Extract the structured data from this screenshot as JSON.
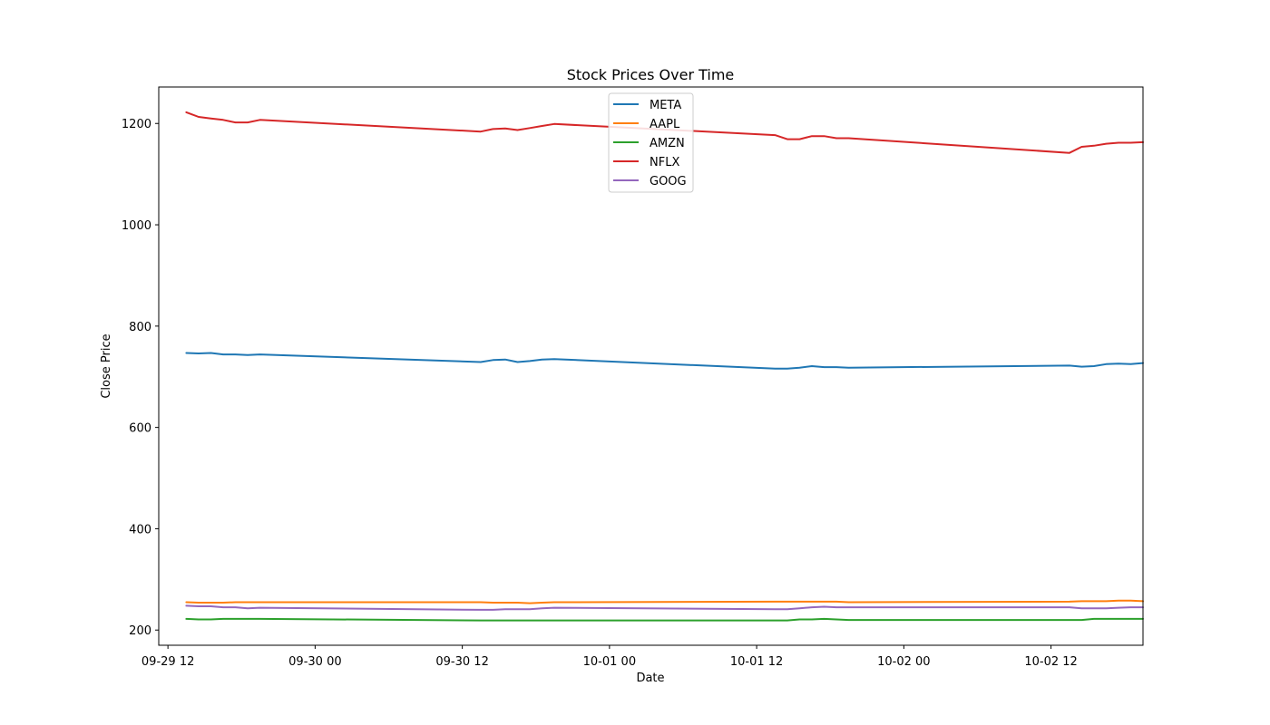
{
  "chart_data": {
    "type": "line",
    "title": "Stock Prices Over Time",
    "xlabel": "Date",
    "ylabel": "Close Price",
    "x_tick_labels": [
      {
        "label": "09-29 12",
        "date": "2025-09-29T12:00"
      },
      {
        "label": "09-30 00",
        "date": "2025-09-30T00:00"
      },
      {
        "label": "09-30 12",
        "date": "2025-09-30T12:00"
      },
      {
        "label": "10-01 00",
        "date": "2025-10-01T00:00"
      },
      {
        "label": "10-01 12",
        "date": "2025-10-01T12:00"
      },
      {
        "label": "10-02 00",
        "date": "2025-10-02T00:00"
      },
      {
        "label": "10-02 12",
        "date": "2025-10-02T12:00"
      }
    ],
    "y_ticks": [
      200,
      400,
      600,
      800,
      1000,
      1200
    ],
    "xlim": [
      "2025-09-29T11:15",
      "2025-10-02T19:30"
    ],
    "ylim": [
      170,
      1272
    ],
    "grid": false,
    "legend_position": "upper center",
    "series": [
      {
        "name": "META",
        "color": "#1f77b4",
        "points": [
          [
            "2025-09-29T13:30",
            747
          ],
          [
            "2025-09-29T14:30",
            746
          ],
          [
            "2025-09-29T15:30",
            747
          ],
          [
            "2025-09-29T16:30",
            744
          ],
          [
            "2025-09-29T17:30",
            744
          ],
          [
            "2025-09-29T18:30",
            743
          ],
          [
            "2025-09-29T19:30",
            744
          ],
          [
            "2025-09-30T13:30",
            729
          ],
          [
            "2025-09-30T14:30",
            733
          ],
          [
            "2025-09-30T15:30",
            734
          ],
          [
            "2025-09-30T16:30",
            729
          ],
          [
            "2025-09-30T17:30",
            731
          ],
          [
            "2025-09-30T18:30",
            734
          ],
          [
            "2025-09-30T19:30",
            735
          ],
          [
            "2025-10-01T13:30",
            716
          ],
          [
            "2025-10-01T14:30",
            716
          ],
          [
            "2025-10-01T15:30",
            718
          ],
          [
            "2025-10-01T16:30",
            721
          ],
          [
            "2025-10-01T17:30",
            719
          ],
          [
            "2025-10-01T18:30",
            719
          ],
          [
            "2025-10-01T19:30",
            718
          ],
          [
            "2025-10-02T13:30",
            722
          ],
          [
            "2025-10-02T14:30",
            720
          ],
          [
            "2025-10-02T15:30",
            721
          ],
          [
            "2025-10-02T16:30",
            725
          ],
          [
            "2025-10-02T17:30",
            726
          ],
          [
            "2025-10-02T18:30",
            725
          ],
          [
            "2025-10-02T19:30",
            727
          ]
        ]
      },
      {
        "name": "AAPL",
        "color": "#ff7f0e",
        "points": [
          [
            "2025-09-29T13:30",
            255
          ],
          [
            "2025-09-29T14:30",
            254
          ],
          [
            "2025-09-29T15:30",
            254
          ],
          [
            "2025-09-29T16:30",
            254
          ],
          [
            "2025-09-29T17:30",
            255
          ],
          [
            "2025-09-29T18:30",
            255
          ],
          [
            "2025-09-29T19:30",
            255
          ],
          [
            "2025-09-30T13:30",
            255
          ],
          [
            "2025-09-30T14:30",
            254
          ],
          [
            "2025-09-30T15:30",
            254
          ],
          [
            "2025-09-30T16:30",
            254
          ],
          [
            "2025-09-30T17:30",
            253
          ],
          [
            "2025-09-30T18:30",
            254
          ],
          [
            "2025-09-30T19:30",
            255
          ],
          [
            "2025-10-01T13:30",
            256
          ],
          [
            "2025-10-01T14:30",
            256
          ],
          [
            "2025-10-01T15:30",
            256
          ],
          [
            "2025-10-01T16:30",
            256
          ],
          [
            "2025-10-01T17:30",
            256
          ],
          [
            "2025-10-01T18:30",
            256
          ],
          [
            "2025-10-01T19:30",
            255
          ],
          [
            "2025-10-02T13:30",
            256
          ],
          [
            "2025-10-02T14:30",
            257
          ],
          [
            "2025-10-02T15:30",
            257
          ],
          [
            "2025-10-02T16:30",
            257
          ],
          [
            "2025-10-02T17:30",
            258
          ],
          [
            "2025-10-02T18:30",
            258
          ],
          [
            "2025-10-02T19:30",
            257
          ]
        ]
      },
      {
        "name": "AMZN",
        "color": "#2ca02c",
        "points": [
          [
            "2025-09-29T13:30",
            222
          ],
          [
            "2025-09-29T14:30",
            221
          ],
          [
            "2025-09-29T15:30",
            221
          ],
          [
            "2025-09-29T16:30",
            222
          ],
          [
            "2025-09-29T17:30",
            222
          ],
          [
            "2025-09-29T18:30",
            222
          ],
          [
            "2025-09-29T19:30",
            222
          ],
          [
            "2025-09-30T13:30",
            219
          ],
          [
            "2025-09-30T14:30",
            219
          ],
          [
            "2025-09-30T15:30",
            219
          ],
          [
            "2025-09-30T16:30",
            219
          ],
          [
            "2025-09-30T17:30",
            219
          ],
          [
            "2025-09-30T18:30",
            219
          ],
          [
            "2025-09-30T19:30",
            219
          ],
          [
            "2025-10-01T13:30",
            219
          ],
          [
            "2025-10-01T14:30",
            219
          ],
          [
            "2025-10-01T15:30",
            221
          ],
          [
            "2025-10-01T16:30",
            221
          ],
          [
            "2025-10-01T17:30",
            222
          ],
          [
            "2025-10-01T18:30",
            221
          ],
          [
            "2025-10-01T19:30",
            220
          ],
          [
            "2025-10-02T13:30",
            220
          ],
          [
            "2025-10-02T14:30",
            220
          ],
          [
            "2025-10-02T15:30",
            222
          ],
          [
            "2025-10-02T16:30",
            222
          ],
          [
            "2025-10-02T17:30",
            222
          ],
          [
            "2025-10-02T18:30",
            222
          ],
          [
            "2025-10-02T19:30",
            222
          ]
        ]
      },
      {
        "name": "NFLX",
        "color": "#d62728",
        "points": [
          [
            "2025-09-29T13:30",
            1222
          ],
          [
            "2025-09-29T14:30",
            1213
          ],
          [
            "2025-09-29T15:30",
            1210
          ],
          [
            "2025-09-29T16:30",
            1207
          ],
          [
            "2025-09-29T17:30",
            1202
          ],
          [
            "2025-09-29T18:30",
            1202
          ],
          [
            "2025-09-29T19:30",
            1207
          ],
          [
            "2025-09-30T13:30",
            1184
          ],
          [
            "2025-09-30T14:30",
            1189
          ],
          [
            "2025-09-30T15:30",
            1190
          ],
          [
            "2025-09-30T16:30",
            1187
          ],
          [
            "2025-09-30T17:30",
            1191
          ],
          [
            "2025-09-30T18:30",
            1195
          ],
          [
            "2025-09-30T19:30",
            1199
          ],
          [
            "2025-10-01T13:30",
            1177
          ],
          [
            "2025-10-01T14:30",
            1169
          ],
          [
            "2025-10-01T15:30",
            1169
          ],
          [
            "2025-10-01T16:30",
            1175
          ],
          [
            "2025-10-01T17:30",
            1175
          ],
          [
            "2025-10-01T18:30",
            1171
          ],
          [
            "2025-10-01T19:30",
            1171
          ],
          [
            "2025-10-02T13:30",
            1142
          ],
          [
            "2025-10-02T14:30",
            1154
          ],
          [
            "2025-10-02T15:30",
            1156
          ],
          [
            "2025-10-02T16:30",
            1160
          ],
          [
            "2025-10-02T17:30",
            1162
          ],
          [
            "2025-10-02T18:30",
            1162
          ],
          [
            "2025-10-02T19:30",
            1163
          ]
        ]
      },
      {
        "name": "GOOG",
        "color": "#9467bd",
        "points": [
          [
            "2025-09-29T13:30",
            248
          ],
          [
            "2025-09-29T14:30",
            247
          ],
          [
            "2025-09-29T15:30",
            247
          ],
          [
            "2025-09-29T16:30",
            245
          ],
          [
            "2025-09-29T17:30",
            245
          ],
          [
            "2025-09-29T18:30",
            243
          ],
          [
            "2025-09-29T19:30",
            244
          ],
          [
            "2025-09-30T13:30",
            240
          ],
          [
            "2025-09-30T14:30",
            240
          ],
          [
            "2025-09-30T15:30",
            241
          ],
          [
            "2025-09-30T16:30",
            241
          ],
          [
            "2025-09-30T17:30",
            241
          ],
          [
            "2025-09-30T18:30",
            243
          ],
          [
            "2025-09-30T19:30",
            244
          ],
          [
            "2025-10-01T13:30",
            241
          ],
          [
            "2025-10-01T14:30",
            241
          ],
          [
            "2025-10-01T15:30",
            243
          ],
          [
            "2025-10-01T16:30",
            245
          ],
          [
            "2025-10-01T17:30",
            246
          ],
          [
            "2025-10-01T18:30",
            245
          ],
          [
            "2025-10-01T19:30",
            245
          ],
          [
            "2025-10-02T13:30",
            245
          ],
          [
            "2025-10-02T14:30",
            243
          ],
          [
            "2025-10-02T15:30",
            243
          ],
          [
            "2025-10-02T16:30",
            243
          ],
          [
            "2025-10-02T17:30",
            244
          ],
          [
            "2025-10-02T18:30",
            245
          ],
          [
            "2025-10-02T19:30",
            245
          ]
        ]
      }
    ]
  }
}
